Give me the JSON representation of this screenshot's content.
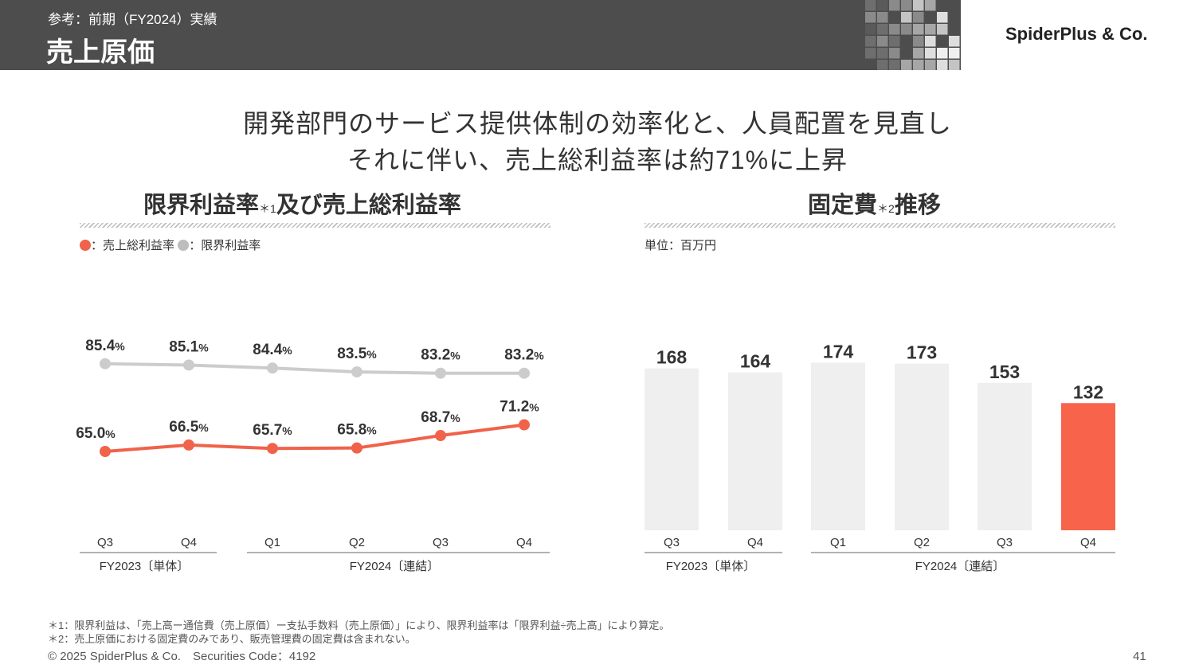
{
  "header": {
    "subtitle": "参考：前期（FY2024）実績",
    "title": "売上原価",
    "logo": "SpiderPlus & Co."
  },
  "headline": {
    "line1": "開発部門のサービス提供体制の効率化と、人員配置を見直し",
    "line2": "それに伴い、売上総利益率は約71%に上昇"
  },
  "left_section": {
    "title": "限界利益率",
    "note": "＊1",
    "title_rest": "及び売上総利益率",
    "legend": {
      "gross_label": "：売上総利益率",
      "marginal_label": "：限界利益率"
    }
  },
  "right_section": {
    "title": "固定費",
    "note": "＊2",
    "title_rest": "推移",
    "unit": "単位：百万円"
  },
  "footnotes": [
    "＊1：限界利益は、「売上高ー通信費（売上原価）ー支払手数料（売上原価）」により、限界利益率は「限界利益÷売上高」により算定。",
    "＊2：売上原価における固定費のみであり、販売管理費の固定費は含まれない。"
  ],
  "footer": {
    "copyright": "© 2025 SpiderPlus & Co.　Securities Code：4192",
    "page": "41"
  },
  "chart_data": [
    {
      "type": "line",
      "categories": [
        "Q3",
        "Q4",
        "Q1",
        "Q2",
        "Q3",
        "Q4"
      ],
      "groups": [
        {
          "label": "FY2023〔単体〕",
          "count": 2
        },
        {
          "label": "FY2024〔連結〕",
          "count": 4
        }
      ],
      "series": [
        {
          "name": "限界利益率",
          "values": [
            85.4,
            85.1,
            84.4,
            83.5,
            83.2,
            83.2
          ],
          "labels": [
            "85.4",
            "85.1",
            "84.4",
            "83.5",
            "83.2",
            "83.2"
          ],
          "color": "#cccccc"
        },
        {
          "name": "売上総利益率",
          "values": [
            65.0,
            66.5,
            65.7,
            65.8,
            68.7,
            71.2
          ],
          "labels": [
            "65.0",
            "66.5",
            "65.7",
            "65.8",
            "68.7",
            "71.2"
          ],
          "color": "#f0624a"
        }
      ],
      "value_suffix": "%",
      "ylim": [
        50,
        95
      ]
    },
    {
      "type": "bar",
      "categories": [
        "Q3",
        "Q4",
        "Q1",
        "Q2",
        "Q3",
        "Q4"
      ],
      "groups": [
        {
          "label": "FY2023〔単体〕",
          "count": 2
        },
        {
          "label": "FY2024〔連結〕",
          "count": 4
        }
      ],
      "values": [
        168,
        164,
        174,
        173,
        153,
        132
      ],
      "colors": [
        "#efefef",
        "#efefef",
        "#efefef",
        "#efefef",
        "#efefef",
        "#f8634c"
      ],
      "ylim": [
        0,
        190
      ]
    }
  ]
}
